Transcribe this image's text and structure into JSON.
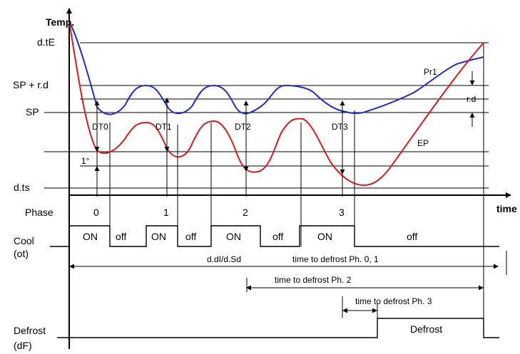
{
  "axes": {
    "y_label": "Temp.",
    "x_label": "time"
  },
  "levels": {
    "dtE": "d.tE",
    "sp_rd": "SP + r.d",
    "sp": "SP",
    "dts": "d.ts",
    "one_degree": "1°"
  },
  "curves": {
    "pr1_label": "Pr1",
    "ep_label": "EP",
    "rd_label": "r.d",
    "pr1_color": "#1f2bd6",
    "ep_color": "#e01a1a"
  },
  "dt_markers": [
    "DT0",
    "DT1",
    "DT2",
    "DT3"
  ],
  "phase": {
    "label": "Phase",
    "numbers": [
      "0",
      "1",
      "2",
      "3"
    ]
  },
  "cool": {
    "label_line1": "Cool",
    "label_line2": "(ot)",
    "states": [
      "ON",
      "off",
      "ON",
      "off",
      "ON",
      "off",
      "ON",
      "off"
    ]
  },
  "intervals": {
    "ddi": "d.dI/d.Sd",
    "ph01": "time to defrost Ph. 0, 1",
    "ph2": "time to defrost Ph. 2",
    "ph3": "time to defrost Ph. 3"
  },
  "defrost": {
    "label_line1": "Defrost",
    "label_line2": "(dF)",
    "box_label": "Defrost"
  }
}
